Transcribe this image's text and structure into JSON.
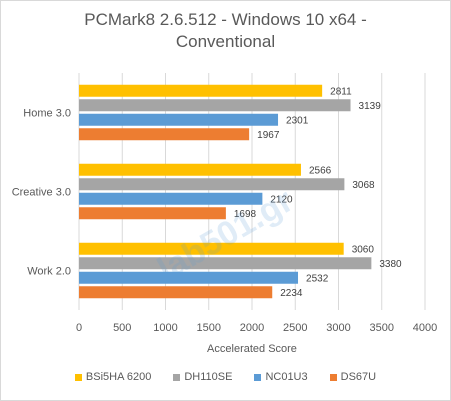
{
  "chart_data": {
    "type": "bar",
    "orientation": "horizontal",
    "title_lines": [
      "PCMark8 2.6.512 - Windows 10 x64 -",
      "Conventional"
    ],
    "xlabel": "Accelerated Score",
    "ylabel": "",
    "xlim": [
      0,
      4000
    ],
    "xticks": [
      0,
      500,
      1000,
      1500,
      2000,
      2500,
      3000,
      3500,
      4000
    ],
    "grid": true,
    "legend_position": "bottom",
    "categories": [
      "Home 3.0",
      "Creative 3.0",
      "Work 2.0"
    ],
    "series": [
      {
        "name": "BSi5HA 6200",
        "color": "#ffc000",
        "values": [
          2811,
          2566,
          3060
        ]
      },
      {
        "name": "DH110SE",
        "color": "#a5a5a5",
        "values": [
          3139,
          3068,
          3380
        ]
      },
      {
        "name": "NC01U3",
        "color": "#5b9bd5",
        "values": [
          2301,
          2120,
          2532
        ]
      },
      {
        "name": "DS67U",
        "color": "#ed7d31",
        "values": [
          1967,
          1698,
          2234
        ]
      }
    ]
  },
  "watermark": "lab501.gr"
}
